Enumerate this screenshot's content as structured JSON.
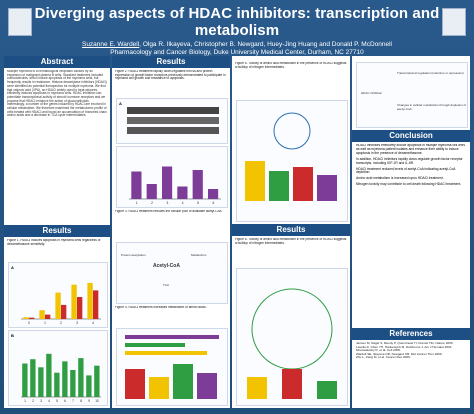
{
  "header": {
    "title": "Diverging aspects of HDAC inhibitors: transcription and metabolism",
    "authors_underlined": "Suzanne E. Wardell",
    "authors_rest": ", Olga R. Ilkayeva, Christopher B. Newgard, Huey-Jing Huang and Donald P. McDonnell",
    "affiliation": "Pharmacology and Cancer Biology, Duke University Medical Center, Durham, NC 27710"
  },
  "sections": {
    "abstract": "Abstract",
    "results": "Results",
    "conclusion": "Conclusion",
    "references": "References"
  },
  "abstract_text": "Multiple myeloma is a hematological neoplasm caused by an expansion of malignant plasma B cells. Standard treatment included corticosteroids, which induce apoptosis of the myeloma cells, but frequently results in resistance. Histone deacetylase inhibitors (HDACi) were identified as potential therapeutics for multiple myeloma. We find that valproic acid (VPA), an HDACi widely used to treat seizures, efficiently induces apoptosis in myeloma cells. HDAC inhibition can potentiate transcriptional activity of steroid hormone receptors and we propose that HDACi enhance the action of glucocorticoids. Interestingly, a number of the genes induced by HDACi are involved in cellular metabolism. We therefore examined the metabolomic profile of cells treated with HDACi and found an accumulation of branched chain amino acids and a decrease in TCA cycle intermediates.",
  "figure_captions": {
    "fig1": "Figure 1. HDACi induces apoptosis in myeloma cells regardless of dexamethasone sensitivity.",
    "fig2": "Figure 2. HDACi treatment rapidly down-regulates mRNA and protein expression of growth factor receptors previously demonstrated to participate in myeloma cell growth and resistance to apoptosis.",
    "fig3": "Figure 3. HDACi treatment reduces the cellular pool of available acetyl-CoA.",
    "fig4": "Figure 4. HDACi treatment increases metabolism of amino acids.",
    "fig5": "Figure 5. Toxicity of amino acid metabolism in the presence of HDACi suggests a buildup of nitrogen intermediates.",
    "fig6": "Figure 6. Toxicity of amino acid metabolism in the presence of HDACi suggests a buildup of nitrogen intermediates."
  },
  "diagram_labels": {
    "hdac_inhibition": "HDAC inhibition",
    "transcriptional_regulation": "Transcriptional regulation (induction or repression)",
    "changes_cellular": "Changes in cellular metabolism through depletion of acetyl-CoA",
    "acetyl_coa": "Acetyl-CoA",
    "acetylation": "Acetylation",
    "tca": "TCA",
    "protein_acetylation": "Protein acetylation",
    "metabolism": "Metabolism"
  },
  "conclusion_bullets": [
    "HDACi inhibitors effectively induce apoptosis in multiple myeloma cell lines as well as myeloma patient isolates and enhance their ability to induce apoptosis in the presence of dexamethasone.",
    "In addition, HDACi inhibitors rapidly down-regulate growth factor receptor transcripts, including IGF-1R and IL-6R.",
    "HDACi treatment reduced levels of acetyl-CoA indicating acetyl-CoA depletion.",
    "Amino acid metabolism is increased upon HDACi treatment.",
    "Nitrogen toxicity may contribute to cell death following HDACi treatment."
  ],
  "references": [
    "Jansen M, Nagel S, Moody P, Quentmeier H, Drexler HG. Nature 2005.",
    "Lavelle D, Chen YH, Hankewych M, DeSimone J. Am J Hematol 2001.",
    "Mostoslavsky R, et al. Cell 2006.",
    "Wardell SE, Ilkayeva OR, Newgard CB. Mol Cancer Ther 2009.",
    "Zhu L, Jiang M, et al. Cancer Res 2009."
  ],
  "chart_data": [
    {
      "type": "bar",
      "title": "A",
      "categories": [
        "0",
        "1",
        "2",
        "3",
        "4"
      ],
      "series": [
        {
          "values": [
            4,
            20,
            60,
            78,
            82
          ]
        },
        {
          "values": [
            3,
            10,
            32,
            50,
            65
          ]
        }
      ],
      "ylim": [
        0,
        100
      ]
    },
    {
      "type": "bar",
      "title": "B",
      "categories": [
        "1",
        "2",
        "3",
        "4",
        "5",
        "6",
        "7",
        "8",
        "9",
        "10"
      ],
      "values": [
        62,
        70,
        55,
        80,
        45,
        66,
        50,
        72,
        40,
        58
      ],
      "ylim": [
        0,
        100
      ]
    },
    {
      "type": "bar",
      "title": "",
      "categories": [
        "1",
        "2",
        "3",
        "4",
        "5",
        "6"
      ],
      "values": [
        55,
        30,
        65,
        25,
        58,
        20
      ],
      "ylim": [
        0,
        80
      ]
    }
  ],
  "colors": {
    "header_bg": "#1f4e79",
    "band": "#1d4f84",
    "accent_yellow": "#f2c300",
    "accent_red": "#cc2b2b",
    "accent_green": "#2f9d42",
    "accent_purple": "#7d3c98"
  }
}
